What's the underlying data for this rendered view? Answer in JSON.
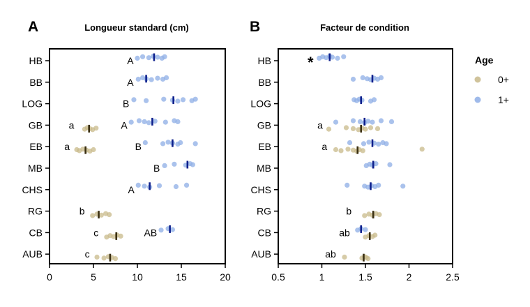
{
  "colors": {
    "age_0": "#c8b98a",
    "age_1": "#8eaee6",
    "median_0": "#3a2f12",
    "median_1": "#0d1f8c",
    "axis": "#000000"
  },
  "legend": {
    "title": "Age",
    "entries": [
      {
        "label": "0+",
        "color": "#c8b98a"
      },
      {
        "label": "1+",
        "color": "#8eaee6"
      }
    ]
  },
  "chart_data": [
    {
      "type": "scatter",
      "panel": "A",
      "title": "Longueur standard  (cm)",
      "xlabel": "",
      "ylabel": "",
      "xlim": [
        0,
        20
      ],
      "xticks": [
        0,
        5,
        10,
        15,
        20
      ],
      "categories": [
        "HB",
        "BB",
        "LOG",
        "GB",
        "EB",
        "MB",
        "CHS",
        "RG",
        "CB",
        "AUB"
      ],
      "grid": false,
      "series": [
        {
          "name": "0+",
          "points": {
            "GB": [
              4.0,
              4.3,
              4.6,
              4.9,
              5.3
            ],
            "EB": [
              3.1,
              3.4,
              3.8,
              4.2,
              4.6,
              5.0
            ],
            "RG": [
              4.9,
              5.4,
              5.9,
              6.4,
              6.8
            ],
            "CB": [
              6.5,
              6.9,
              7.3,
              7.7,
              8.1
            ],
            "AUB": [
              5.4,
              6.2,
              6.7,
              7.1,
              7.5
            ]
          },
          "medians": {
            "GB": 4.5,
            "EB": 4.1,
            "RG": 5.6,
            "CB": 7.6,
            "AUB": 6.9
          }
        },
        {
          "name": "1+",
          "points": {
            "HB": [
              10.0,
              10.6,
              11.3,
              11.8,
              12.3,
              12.8,
              13.1
            ],
            "BB": [
              10.1,
              10.6,
              11.0,
              11.6,
              12.3,
              12.9,
              13.3
            ],
            "LOG": [
              9.6,
              11.0,
              13.0,
              14.0,
              14.6,
              15.2,
              16.2,
              16.6
            ],
            "GB": [
              9.3,
              10.2,
              10.8,
              11.3,
              12.0,
              13.2,
              14.2,
              14.6
            ],
            "EB": [
              10.9,
              12.9,
              13.5,
              14.0,
              14.6,
              14.9,
              16.6
            ],
            "MB": [
              13.1,
              14.2,
              15.5,
              16.0,
              16.3
            ],
            "CHS": [
              10.1,
              10.8,
              11.4,
              12.5,
              14.4,
              15.6
            ],
            "CB": [
              12.7,
              13.5,
              14.0
            ]
          },
          "medians": {
            "HB": 11.9,
            "BB": 11.0,
            "LOG": 14.1,
            "GB": 11.7,
            "EB": 14.0,
            "MB": 15.7,
            "CHS": 11.4,
            "CB": 13.7
          }
        }
      ],
      "annotations": [
        {
          "category": "HB",
          "text": "A",
          "x": 9.2
        },
        {
          "category": "BB",
          "text": "A",
          "x": 9.2
        },
        {
          "category": "LOG",
          "text": "B",
          "x": 8.7
        },
        {
          "category": "GB",
          "text": "a",
          "x": 2.5
        },
        {
          "category": "GB",
          "text": "A",
          "x": 8.5
        },
        {
          "category": "EB",
          "text": "a",
          "x": 2.0
        },
        {
          "category": "EB",
          "text": "B",
          "x": 10.1
        },
        {
          "category": "MB",
          "text": "B",
          "x": 12.2
        },
        {
          "category": "CHS",
          "text": "A",
          "x": 9.3
        },
        {
          "category": "RG",
          "text": "b",
          "x": 3.7
        },
        {
          "category": "CB",
          "text": "c",
          "x": 5.3
        },
        {
          "category": "CB",
          "text": "AB",
          "x": 11.5
        },
        {
          "category": "AUB",
          "text": "c",
          "x": 4.3
        }
      ]
    },
    {
      "type": "scatter",
      "panel": "B",
      "title": "Facteur de condition",
      "xlabel": "",
      "ylabel": "",
      "xlim": [
        0.5,
        2.5
      ],
      "xticks": [
        0.5,
        1.0,
        1.5,
        2.0,
        2.5
      ],
      "categories": [
        "HB",
        "BB",
        "LOG",
        "GB",
        "EB",
        "MB",
        "CHS",
        "RG",
        "CB",
        "AUB"
      ],
      "grid": false,
      "series": [
        {
          "name": "0+",
          "points": {
            "GB": [
              1.08,
              1.28,
              1.36,
              1.42,
              1.46,
              1.5,
              1.56,
              1.64
            ],
            "EB": [
              1.16,
              1.22,
              1.3,
              1.36,
              1.4,
              1.43,
              1.47,
              2.15
            ],
            "RG": [
              1.49,
              1.54,
              1.58,
              1.62,
              1.66
            ],
            "CB": [
              1.5,
              1.54,
              1.58,
              1.61
            ],
            "AUB": [
              1.26,
              1.46,
              1.49,
              1.51,
              1.53
            ]
          },
          "medians": {
            "GB": 1.45,
            "EB": 1.41,
            "RG": 1.59,
            "CB": 1.55,
            "AUB": 1.48
          }
        },
        {
          "name": "1+",
          "points": {
            "HB": [
              0.97,
              1.01,
              1.05,
              1.09,
              1.12,
              1.18,
              1.25
            ],
            "BB": [
              1.36,
              1.47,
              1.52,
              1.56,
              1.6,
              1.64,
              1.68
            ],
            "LOG": [
              1.37,
              1.4,
              1.43,
              1.46,
              1.56,
              1.6
            ],
            "GB": [
              1.16,
              1.36,
              1.44,
              1.49,
              1.53,
              1.58,
              1.68,
              1.8
            ],
            "EB": [
              1.32,
              1.48,
              1.54,
              1.6,
              1.65,
              1.7,
              1.74
            ],
            "MB": [
              1.51,
              1.55,
              1.58,
              1.62,
              1.78
            ],
            "CHS": [
              1.29,
              1.49,
              1.53,
              1.57,
              1.61,
              1.65,
              1.93
            ],
            "CB": [
              1.41,
              1.45,
              1.5
            ]
          },
          "medians": {
            "HB": 1.09,
            "BB": 1.58,
            "LOG": 1.45,
            "GB": 1.49,
            "EB": 1.58,
            "MB": 1.59,
            "CHS": 1.56,
            "CB": 1.45
          }
        }
      ],
      "annotations": [
        {
          "category": "HB",
          "text": "*",
          "x": 0.87
        },
        {
          "category": "GB",
          "text": "a",
          "x": 0.98
        },
        {
          "category": "EB",
          "text": "a",
          "x": 1.03
        },
        {
          "category": "RG",
          "text": "b",
          "x": 1.31
        },
        {
          "category": "CB",
          "text": "ab",
          "x": 1.26
        },
        {
          "category": "AUB",
          "text": "ab",
          "x": 1.1
        }
      ]
    }
  ]
}
